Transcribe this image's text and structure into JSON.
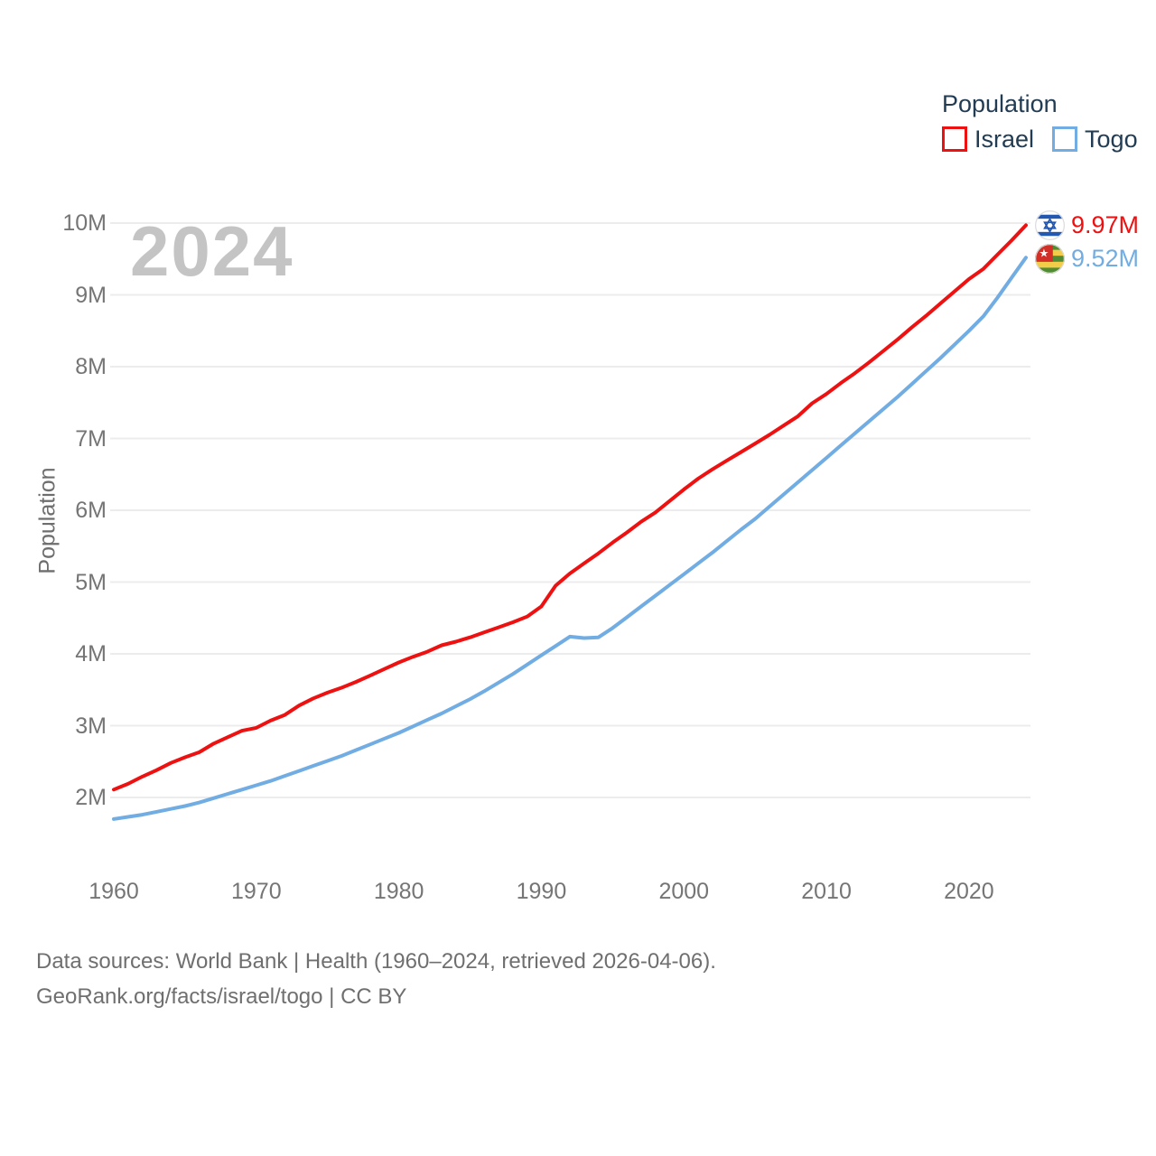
{
  "watermark": {
    "text": "2024"
  },
  "legend": {
    "title": "Population",
    "items": [
      {
        "label": "Israel",
        "color": "#ee1111"
      },
      {
        "label": "Togo",
        "color": "#71ade2"
      }
    ]
  },
  "y_axis": {
    "title": "Population",
    "tick_labels": [
      "2M",
      "3M",
      "4M",
      "5M",
      "6M",
      "7M",
      "8M",
      "9M",
      "10M"
    ],
    "tick_values": [
      2,
      3,
      4,
      5,
      6,
      7,
      8,
      9,
      10
    ]
  },
  "x_axis": {
    "tick_labels": [
      "1960",
      "1970",
      "1980",
      "1990",
      "2000",
      "2010",
      "2020"
    ],
    "tick_values": [
      1960,
      1970,
      1980,
      1990,
      2000,
      2010,
      2020
    ]
  },
  "end_labels": [
    {
      "country": "Israel",
      "flag": "israel-flag-icon",
      "value": "9.97M",
      "color": "#ee1111"
    },
    {
      "country": "Togo",
      "flag": "togo-flag-icon",
      "value": "9.52M",
      "color": "#71ade2"
    }
  ],
  "footer": {
    "line1": "Data sources: World Bank | Health (1960–2024, retrieved 2026-04-06).",
    "line2": "GeoRank.org/facts/israel/togo | CC BY"
  },
  "chart_data": {
    "type": "line",
    "title": "Population",
    "xlabel": "",
    "ylabel": "Population",
    "xlim": [
      1960,
      2024
    ],
    "ylim": [
      1.5,
      10.3
    ],
    "grid": "horizontal",
    "legend_position": "top-right",
    "x": [
      1960,
      1961,
      1962,
      1963,
      1964,
      1965,
      1966,
      1967,
      1968,
      1969,
      1970,
      1971,
      1972,
      1973,
      1974,
      1975,
      1976,
      1977,
      1978,
      1979,
      1980,
      1981,
      1982,
      1983,
      1984,
      1985,
      1986,
      1987,
      1988,
      1989,
      1990,
      1991,
      1992,
      1993,
      1994,
      1995,
      1996,
      1997,
      1998,
      1999,
      2000,
      2001,
      2002,
      2003,
      2004,
      2005,
      2006,
      2007,
      2008,
      2009,
      2010,
      2011,
      2012,
      2013,
      2014,
      2015,
      2016,
      2017,
      2018,
      2019,
      2020,
      2021,
      2022,
      2023,
      2024
    ],
    "unit": "millions",
    "series": [
      {
        "name": "Israel",
        "color": "#ee1111",
        "end_value_label": "9.97M",
        "values": [
          2.11,
          2.19,
          2.29,
          2.38,
          2.48,
          2.56,
          2.63,
          2.75,
          2.84,
          2.93,
          2.97,
          3.07,
          3.15,
          3.28,
          3.38,
          3.46,
          3.53,
          3.61,
          3.7,
          3.79,
          3.88,
          3.96,
          4.03,
          4.12,
          4.17,
          4.23,
          4.3,
          4.37,
          4.44,
          4.52,
          4.66,
          4.95,
          5.12,
          5.26,
          5.4,
          5.55,
          5.69,
          5.84,
          5.97,
          6.13,
          6.29,
          6.44,
          6.57,
          6.69,
          6.81,
          6.93,
          7.05,
          7.18,
          7.31,
          7.49,
          7.62,
          7.77,
          7.91,
          8.06,
          8.22,
          8.38,
          8.55,
          8.71,
          8.88,
          9.05,
          9.22,
          9.36,
          9.56,
          9.76,
          9.97
        ]
      },
      {
        "name": "Togo",
        "color": "#71ade2",
        "end_value_label": "9.52M",
        "values": [
          1.7,
          1.73,
          1.76,
          1.8,
          1.84,
          1.88,
          1.93,
          1.99,
          2.05,
          2.11,
          2.17,
          2.23,
          2.3,
          2.37,
          2.44,
          2.51,
          2.58,
          2.66,
          2.74,
          2.82,
          2.9,
          2.99,
          3.08,
          3.17,
          3.27,
          3.37,
          3.48,
          3.6,
          3.72,
          3.85,
          3.98,
          4.11,
          4.24,
          4.22,
          4.23,
          4.36,
          4.51,
          4.66,
          4.81,
          4.96,
          5.11,
          5.26,
          5.41,
          5.57,
          5.73,
          5.88,
          6.05,
          6.22,
          6.39,
          6.56,
          6.73,
          6.9,
          7.07,
          7.24,
          7.41,
          7.58,
          7.76,
          7.94,
          8.12,
          8.31,
          8.5,
          8.7,
          8.96,
          9.24,
          9.52
        ]
      }
    ]
  }
}
